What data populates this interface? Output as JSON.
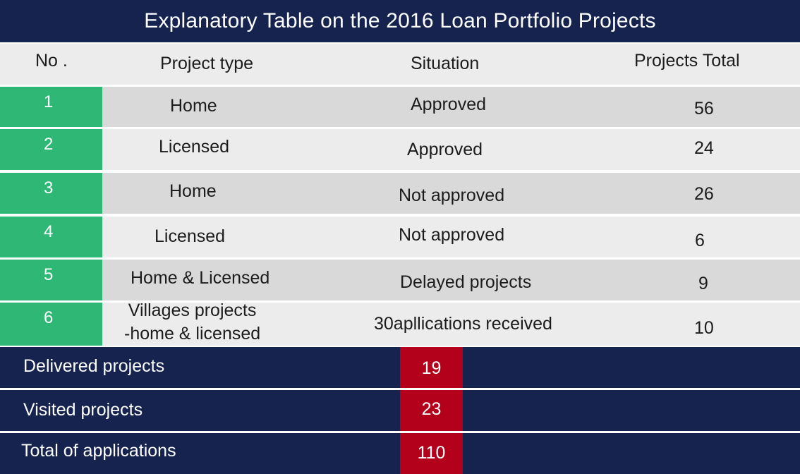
{
  "title": "Explanatory Table on the 2016 Loan Portfolio Projects",
  "colors": {
    "navy": "#16234f",
    "green": "#2fb875",
    "red": "#b3001b",
    "row_dark": "#d9d9d9",
    "row_light": "#ececec"
  },
  "header": {
    "no": "No .",
    "project_type": "Project type",
    "situation": "Situation",
    "projects_total": "Projects Total"
  },
  "chart_data": {
    "type": "table",
    "title": "Explanatory Table on the 2016 Loan Portfolio Projects",
    "columns": [
      "No .",
      "Project type",
      "Situation",
      "Projects Total"
    ],
    "rows": [
      {
        "no": "1",
        "project_type": "Home",
        "situation": "Approved",
        "total": "56"
      },
      {
        "no": "2",
        "project_type": "Licensed",
        "situation": "Approved",
        "total": "24"
      },
      {
        "no": "3",
        "project_type": "Home",
        "situation": "Not approved",
        "total": "26"
      },
      {
        "no": "4",
        "project_type": "Licensed",
        "situation": "Not approved",
        "total": "6"
      },
      {
        "no": "5",
        "project_type": "Home & Licensed",
        "situation": "Delayed projects",
        "total": "9"
      },
      {
        "no": "6",
        "project_type": "Villages projects\n-home & licensed",
        "situation": "30apllications received",
        "total": "10"
      }
    ],
    "summary": [
      {
        "label": "Delivered projects",
        "value": "19"
      },
      {
        "label": "Visited projects",
        "value": "23"
      },
      {
        "label": "Total of applications",
        "value": "110"
      }
    ]
  }
}
